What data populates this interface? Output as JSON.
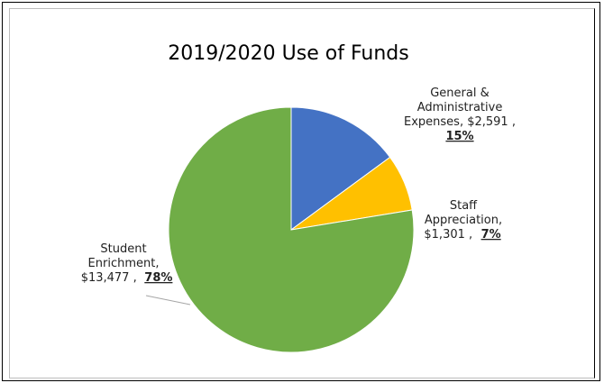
{
  "chart_data": {
    "type": "pie",
    "title": "2019/2020 Use of Funds",
    "slices": [
      {
        "lines": [
          "General &",
          "Administrative",
          "Expenses, $2,591 ,"
        ],
        "amount": 2591,
        "percent": "15%",
        "color": "#4472C4"
      },
      {
        "lines": [
          "Staff",
          "Appreciation,",
          "$1,301 ,"
        ],
        "amount": 1301,
        "percent": "7%",
        "color": "#FFC000"
      },
      {
        "lines": [
          "Student",
          "Enrichment,",
          "$13,477 ,"
        ],
        "amount": 13477,
        "percent": "78%",
        "color": "#70AD47"
      }
    ]
  }
}
